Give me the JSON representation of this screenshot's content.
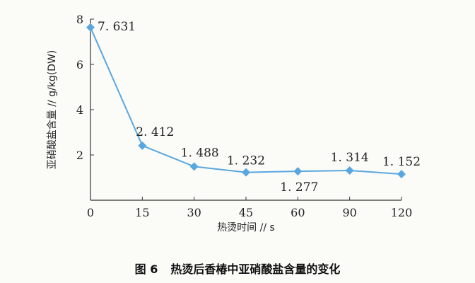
{
  "chart_data": {
    "type": "line",
    "xlabel": "热烫时间 // s",
    "ylabel": "亚硝酸盐含量 // g/kg(DW)",
    "categories": [
      "0",
      "15",
      "30",
      "45",
      "60",
      "90",
      "120"
    ],
    "values": [
      7.631,
      2.412,
      1.488,
      1.232,
      1.277,
      1.314,
      1.152
    ],
    "data_labels": [
      "7. 631",
      "2. 412",
      "1. 488",
      "1. 232",
      "1. 277",
      "1. 314",
      "1. 152"
    ],
    "y_ticks": [
      "2",
      "4",
      "6",
      "8"
    ],
    "ylim": [
      0,
      8
    ],
    "grid": false,
    "colors": {
      "line": "#5aa7e0",
      "marker": "#5aa7e0",
      "axis": "#333333"
    }
  },
  "caption": {
    "figure_number": "图 6",
    "text": "热烫后香椿中亚硝酸盐含量的变化"
  }
}
